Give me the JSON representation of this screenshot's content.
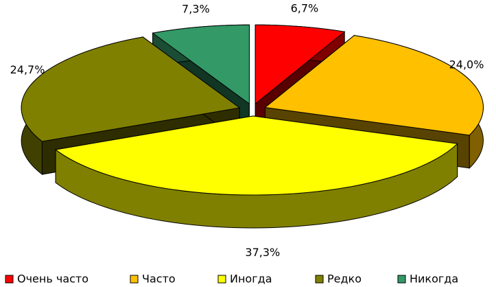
{
  "chart_data": {
    "type": "pie3d",
    "categories": [
      "Очень часто",
      "Часто",
      "Иногда",
      "Редко",
      "Никогда"
    ],
    "values": [
      6.7,
      24.0,
      37.3,
      24.7,
      7.3
    ],
    "value_labels": [
      "6,7%",
      "24,0%",
      "37,3%",
      "24,7%",
      "7,3%"
    ],
    "colors": [
      "#ff0000",
      "#ffc000",
      "#ffff00",
      "#808000",
      "#339966"
    ],
    "legend": "bottom"
  }
}
